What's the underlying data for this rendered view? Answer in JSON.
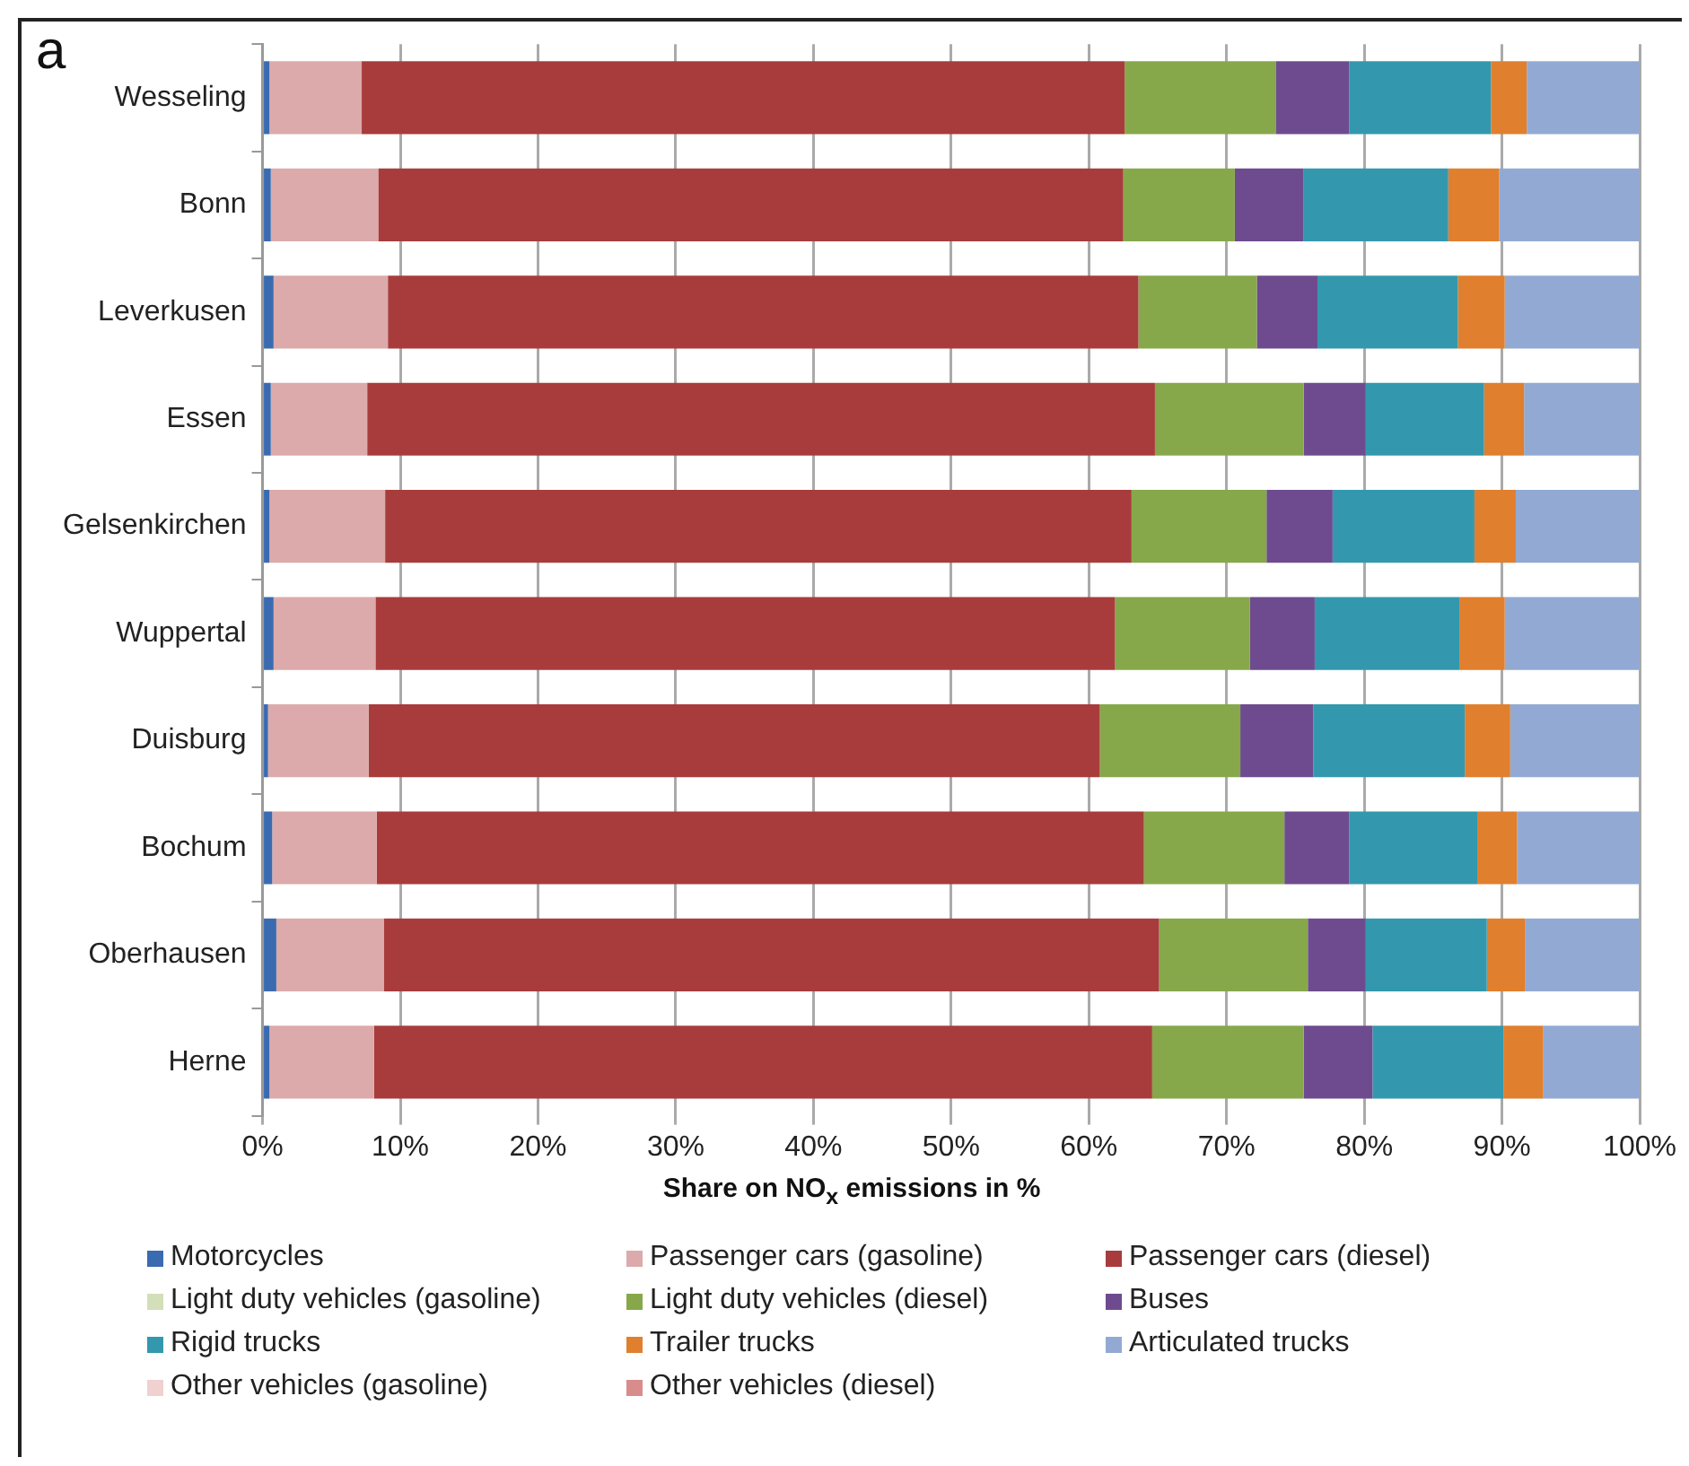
{
  "chart_data": {
    "type": "bar",
    "orientation": "horizontal",
    "stacked": true,
    "xlabel": "Share on NO$_{x}$ emissions in %",
    "annotations": [
      "a"
    ],
    "categories": [
      "Wesseling",
      "Bonn",
      "Leverkusen",
      "Essen",
      "Gelsenkirchen",
      "Wuppertal",
      "Duisburg",
      "Bochum",
      "Oberhausen",
      "Herne"
    ],
    "series": [
      {
        "name": "Motorcycles",
        "color": "#3a6bb0",
        "values": [
          0.5,
          0.6,
          0.8,
          0.6,
          0.5,
          0.8,
          0.4,
          0.7,
          1.0,
          0.5
        ]
      },
      {
        "name": "Passenger cars (gasoline)",
        "color": "#dcaaaa",
        "values": [
          6.7,
          7.8,
          8.3,
          7.0,
          8.4,
          7.4,
          7.3,
          7.6,
          7.8,
          7.6
        ]
      },
      {
        "name": "Passenger cars (diesel)",
        "color": "#a83c3c",
        "values": [
          55.4,
          54.1,
          54.5,
          57.2,
          54.2,
          53.7,
          53.1,
          55.7,
          56.3,
          56.5
        ]
      },
      {
        "name": "Light duty vehicles (gasoline)",
        "color": "#d3dfb8",
        "values": [
          0,
          0,
          0,
          0,
          0,
          0,
          0,
          0,
          0,
          0
        ]
      },
      {
        "name": "Light duty vehicles (diesel)",
        "color": "#86a84a",
        "values": [
          11.0,
          8.1,
          8.6,
          10.8,
          9.8,
          9.8,
          10.2,
          10.2,
          10.8,
          11.0
        ]
      },
      {
        "name": "Buses",
        "color": "#6e4b8f",
        "values": [
          5.3,
          5.0,
          4.4,
          4.5,
          4.8,
          4.7,
          5.3,
          4.7,
          4.2,
          5.0
        ]
      },
      {
        "name": "Rigid trucks",
        "color": "#3398ad",
        "values": [
          10.3,
          10.5,
          10.2,
          8.6,
          10.3,
          10.5,
          11.0,
          9.3,
          8.8,
          9.5
        ]
      },
      {
        "name": "Trailer trucks",
        "color": "#e07f2e",
        "values": [
          2.6,
          3.7,
          3.4,
          2.9,
          3.0,
          3.3,
          3.3,
          2.9,
          2.8,
          2.9
        ]
      },
      {
        "name": "Articulated trucks",
        "color": "#92aad3",
        "values": [
          8.2,
          10.2,
          9.8,
          8.4,
          9.0,
          9.8,
          9.4,
          8.9,
          8.3,
          7.0
        ]
      },
      {
        "name": "Other vehicles (gasoline)",
        "color": "#f0d0d0",
        "values": [
          0,
          0,
          0,
          0,
          0,
          0,
          0,
          0,
          0,
          0
        ]
      },
      {
        "name": "Other vehicles (diesel)",
        "color": "#d98c8c",
        "values": [
          0,
          0,
          0,
          0,
          0,
          0,
          0,
          0,
          0,
          0
        ]
      }
    ],
    "xlim": [
      0,
      100
    ],
    "xticks": [
      {
        "value": 0,
        "label": "0%"
      },
      {
        "value": 10,
        "label": "10%"
      },
      {
        "value": 20,
        "label": "20%"
      },
      {
        "value": 30,
        "label": "30%"
      },
      {
        "value": 40,
        "label": "40%"
      },
      {
        "value": 50,
        "label": "50%"
      },
      {
        "value": 60,
        "label": "60%"
      },
      {
        "value": 70,
        "label": "70%"
      },
      {
        "value": 80,
        "label": "80%"
      },
      {
        "value": 90,
        "label": "90%"
      },
      {
        "value": 100,
        "label": "100%"
      }
    ],
    "grid": "x",
    "legend": "bottom"
  }
}
